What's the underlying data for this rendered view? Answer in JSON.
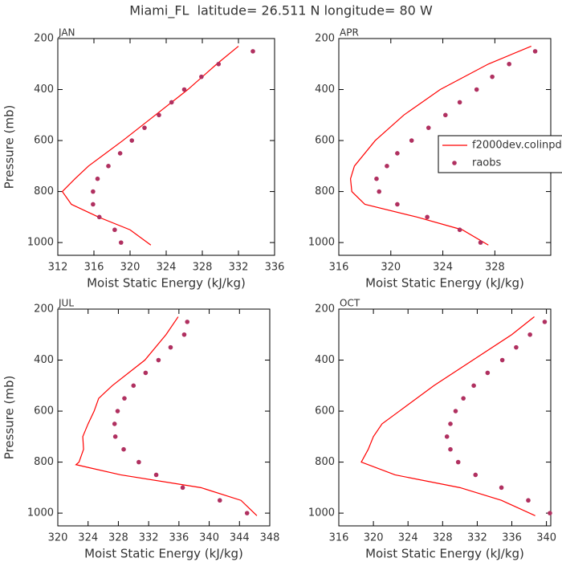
{
  "title": "Miami_FL  latitude= 26.511 N longitude= 80 W",
  "chart_data": [
    {
      "type": "line",
      "label": "JAN",
      "xlabel": "Moist Static Energy (kJ/kg)",
      "ylabel": "Pressure (mb)",
      "xlim": [
        312,
        336
      ],
      "xticks": [
        312,
        316,
        320,
        324,
        328,
        332,
        336
      ],
      "ylim": [
        1050,
        200
      ],
      "yticks": [
        200,
        400,
        600,
        800,
        1000
      ],
      "series": [
        {
          "mode": "line",
          "color": "#ff0000",
          "x": [
            332.0,
            329.6,
            326.4,
            322.8,
            319.2,
            315.4,
            313.9,
            312.5,
            313.5,
            316.5,
            320.0,
            322.3
          ],
          "values": [
            230,
            300,
            400,
            500,
            600,
            700,
            750,
            800,
            850,
            900,
            950,
            1010
          ]
        },
        {
          "mode": "markers",
          "color": "#b03060",
          "x": [
            333.6,
            329.8,
            327.9,
            326.0,
            324.6,
            323.2,
            321.6,
            320.2,
            318.9,
            317.6,
            316.4,
            315.9,
            315.9,
            316.6,
            318.3,
            319.0
          ],
          "values": [
            250,
            300,
            350,
            400,
            450,
            500,
            550,
            600,
            650,
            700,
            750,
            800,
            850,
            900,
            950,
            1000
          ]
        }
      ]
    },
    {
      "type": "line",
      "label": "APR",
      "xlabel": "Moist Static Energy (kJ/kg)",
      "xlim": [
        316,
        332.3
      ],
      "xticks": [
        316,
        320,
        324,
        328
      ],
      "ylim": [
        1050,
        200
      ],
      "yticks": [
        200,
        400,
        600,
        800,
        1000
      ],
      "legend": "center right",
      "series": [
        {
          "name": "f2000dev.colinpd",
          "mode": "line",
          "color": "#ff0000",
          "x": [
            330.8,
            327.5,
            323.8,
            321.0,
            318.8,
            317.2,
            316.9,
            317.0,
            318.0,
            322.0,
            325.5,
            327.5
          ],
          "values": [
            230,
            300,
            400,
            500,
            600,
            700,
            750,
            800,
            850,
            900,
            950,
            1010
          ]
        },
        {
          "name": "raobs",
          "mode": "markers",
          "color": "#b03060",
          "x": [
            331.1,
            329.1,
            327.8,
            326.6,
            325.3,
            324.2,
            322.9,
            321.6,
            320.5,
            319.7,
            318.9,
            319.1,
            320.5,
            322.8,
            325.3,
            326.9
          ],
          "values": [
            250,
            300,
            350,
            400,
            450,
            500,
            550,
            600,
            650,
            700,
            750,
            800,
            850,
            900,
            950,
            1000
          ]
        }
      ]
    },
    {
      "type": "line",
      "label": "JUL",
      "xlabel": "Moist Static Energy (kJ/kg)",
      "ylabel": "Pressure (mb)",
      "xlim": [
        320,
        348
      ],
      "xticks": [
        320,
        324,
        328,
        332,
        336,
        340,
        344,
        348
      ],
      "ylim": [
        1050,
        200
      ],
      "yticks": [
        200,
        400,
        600,
        800,
        1000
      ],
      "series": [
        {
          "mode": "line",
          "color": "#ff0000",
          "x": [
            335.9,
            334.3,
            331.5,
            327.2,
            325.4,
            324.8,
            324.0,
            323.3,
            323.4,
            322.8,
            322.4,
            328.3,
            338.9,
            344.2,
            346.3
          ],
          "values": [
            230,
            300,
            400,
            500,
            550,
            600,
            650,
            700,
            750,
            800,
            810,
            850,
            900,
            950,
            1010
          ]
        },
        {
          "mode": "markers",
          "color": "#b03060",
          "x": [
            337.1,
            336.7,
            334.9,
            333.3,
            331.6,
            330.0,
            328.8,
            327.9,
            327.5,
            327.6,
            328.7,
            330.7,
            333.0,
            336.5,
            341.4,
            345.0
          ],
          "values": [
            250,
            300,
            350,
            400,
            450,
            500,
            550,
            600,
            650,
            700,
            750,
            800,
            850,
            900,
            950,
            1000
          ]
        }
      ]
    },
    {
      "type": "line",
      "label": "OCT",
      "xlabel": "Moist Static Energy (kJ/kg)",
      "xlim": [
        316,
        340.5
      ],
      "xticks": [
        316,
        320,
        324,
        328,
        332,
        336,
        340
      ],
      "ylim": [
        1050,
        200
      ],
      "yticks": [
        200,
        400,
        600,
        800,
        1000
      ],
      "series": [
        {
          "mode": "line",
          "color": "#ff0000",
          "x": [
            338.6,
            336.0,
            331.5,
            327.0,
            323.0,
            321.0,
            320.0,
            319.4,
            318.6,
            322.5,
            330.0,
            334.8,
            338.7
          ],
          "values": [
            230,
            300,
            400,
            500,
            600,
            650,
            700,
            750,
            800,
            850,
            900,
            950,
            1010
          ]
        },
        {
          "mode": "markers",
          "color": "#b03060",
          "x": [
            339.8,
            338.1,
            336.5,
            334.9,
            333.2,
            331.6,
            330.4,
            329.5,
            328.9,
            328.5,
            328.9,
            329.8,
            331.8,
            334.8,
            337.9,
            340.4
          ],
          "values": [
            250,
            300,
            350,
            400,
            450,
            500,
            550,
            600,
            650,
            700,
            750,
            800,
            850,
            900,
            950,
            1000
          ]
        }
      ]
    }
  ]
}
